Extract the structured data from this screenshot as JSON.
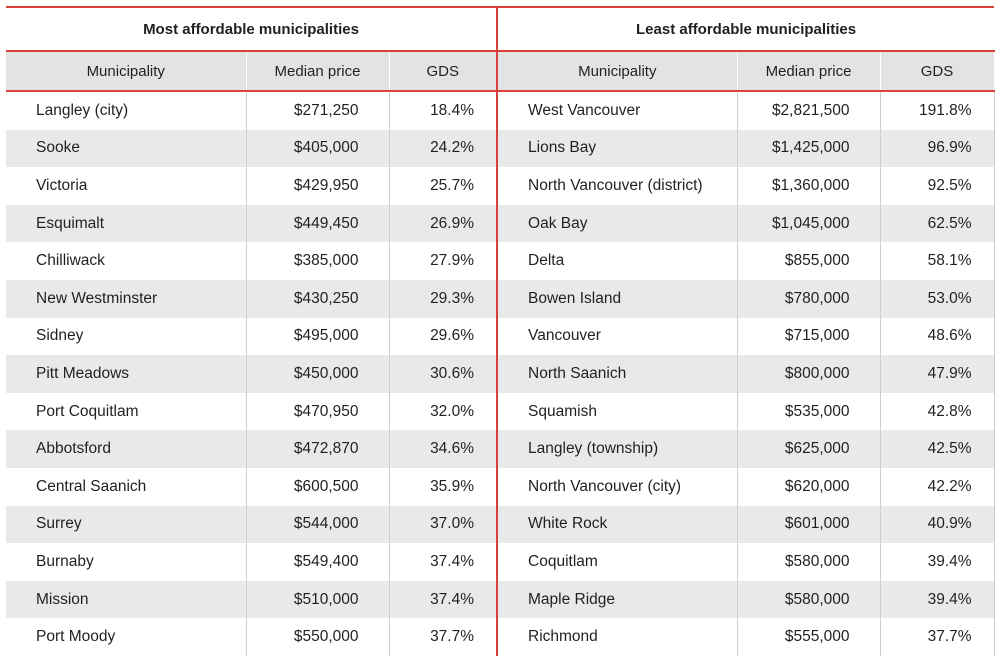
{
  "groups": {
    "left": "Most affordable municipalities",
    "right": "Least affordable municipalities"
  },
  "columns": {
    "municipality": "Municipality",
    "median_price": "Median price",
    "gds": "GDS"
  },
  "most_affordable": [
    {
      "municipality": "Langley (city)",
      "median_price": "$271,250",
      "gds": "18.4%"
    },
    {
      "municipality": "Sooke",
      "median_price": "$405,000",
      "gds": "24.2%"
    },
    {
      "municipality": "Victoria",
      "median_price": "$429,950",
      "gds": "25.7%"
    },
    {
      "municipality": "Esquimalt",
      "median_price": "$449,450",
      "gds": "26.9%"
    },
    {
      "municipality": "Chilliwack",
      "median_price": "$385,000",
      "gds": "27.9%"
    },
    {
      "municipality": "New Westminster",
      "median_price": "$430,250",
      "gds": "29.3%"
    },
    {
      "municipality": "Sidney",
      "median_price": "$495,000",
      "gds": "29.6%"
    },
    {
      "municipality": "Pitt Meadows",
      "median_price": "$450,000",
      "gds": "30.6%"
    },
    {
      "municipality": "Port Coquitlam",
      "median_price": "$470,950",
      "gds": "32.0%"
    },
    {
      "municipality": "Abbotsford",
      "median_price": "$472,870",
      "gds": "34.6%"
    },
    {
      "municipality": "Central Saanich",
      "median_price": "$600,500",
      "gds": "35.9%"
    },
    {
      "municipality": "Surrey",
      "median_price": "$544,000",
      "gds": "37.0%"
    },
    {
      "municipality": "Burnaby",
      "median_price": "$549,400",
      "gds": "37.4%"
    },
    {
      "municipality": "Mission",
      "median_price": "$510,000",
      "gds": "37.4%"
    },
    {
      "municipality": "Port Moody",
      "median_price": "$550,000",
      "gds": "37.7%"
    }
  ],
  "least_affordable": [
    {
      "municipality": "West Vancouver",
      "median_price": "$2,821,500",
      "gds": "191.8%"
    },
    {
      "municipality": "Lions Bay",
      "median_price": "$1,425,000",
      "gds": "96.9%"
    },
    {
      "municipality": "North Vancouver (district)",
      "median_price": "$1,360,000",
      "gds": "92.5%"
    },
    {
      "municipality": "Oak Bay",
      "median_price": "$1,045,000",
      "gds": "62.5%"
    },
    {
      "municipality": "Delta",
      "median_price": "$855,000",
      "gds": "58.1%"
    },
    {
      "municipality": "Bowen Island",
      "median_price": "$780,000",
      "gds": "53.0%"
    },
    {
      "municipality": "Vancouver",
      "median_price": "$715,000",
      "gds": "48.6%"
    },
    {
      "municipality": "North Saanich",
      "median_price": "$800,000",
      "gds": "47.9%"
    },
    {
      "municipality": "Squamish",
      "median_price": "$535,000",
      "gds": "42.8%"
    },
    {
      "municipality": "Langley (township)",
      "median_price": "$625,000",
      "gds": "42.5%"
    },
    {
      "municipality": "North Vancouver (city)",
      "median_price": "$620,000",
      "gds": "42.2%"
    },
    {
      "municipality": "White Rock",
      "median_price": "$601,000",
      "gds": "40.9%"
    },
    {
      "municipality": "Coquitlam",
      "median_price": "$580,000",
      "gds": "39.4%"
    },
    {
      "municipality": "Maple Ridge",
      "median_price": "$580,000",
      "gds": "39.4%"
    },
    {
      "municipality": "Richmond",
      "median_price": "$555,000",
      "gds": "37.7%"
    }
  ],
  "colors": {
    "accent_rule": "#d9413a",
    "header_fill": "#e3e3e6",
    "stripe_fill": "#e9e9ec"
  }
}
